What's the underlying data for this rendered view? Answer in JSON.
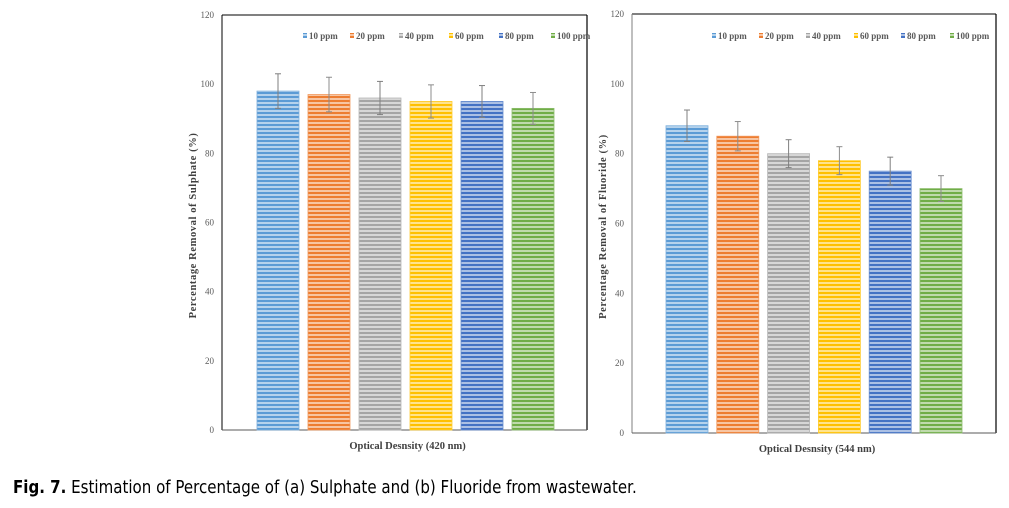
{
  "chart_data": [
    {
      "type": "bar",
      "title": "",
      "panel": "a",
      "xlabel": "Optical Desnsity (420 nm)",
      "ylabel": "Percentage Removal of Sulphate (%)",
      "ylim": [
        0,
        120
      ],
      "yticks": [
        0,
        20,
        40,
        60,
        80,
        100,
        120
      ],
      "grid": false,
      "legend_position": "top",
      "categories": [
        "Optical Desnsity (420 nm)"
      ],
      "series": [
        {
          "name": "10 ppm",
          "values": [
            98
          ],
          "error": [
            5
          ],
          "color": "#5B9BD5"
        },
        {
          "name": "20 ppm",
          "values": [
            97
          ],
          "error": [
            5
          ],
          "color": "#ED7D31"
        },
        {
          "name": "40 ppm",
          "values": [
            96
          ],
          "error": [
            4.8
          ],
          "color": "#A5A5A5"
        },
        {
          "name": "60 ppm",
          "values": [
            95
          ],
          "error": [
            4.8
          ],
          "color": "#FFC000"
        },
        {
          "name": "80 ppm",
          "values": [
            95
          ],
          "error": [
            4.6
          ],
          "color": "#4472C4"
        },
        {
          "name": "100 ppm",
          "values": [
            93
          ],
          "error": [
            4.6
          ],
          "color": "#70AD47"
        }
      ]
    },
    {
      "type": "bar",
      "title": "",
      "panel": "b",
      "xlabel": "Optical Desnsity (544 nm)",
      "ylabel": "Percentage Removal of Fluoride (%)",
      "ylim": [
        0,
        120
      ],
      "yticks": [
        0,
        20,
        40,
        60,
        80,
        100,
        120
      ],
      "grid": false,
      "legend_position": "top",
      "categories": [
        "Optical Desnsity (544 nm)"
      ],
      "series": [
        {
          "name": "10 ppm",
          "values": [
            88
          ],
          "error": [
            4.5
          ],
          "color": "#5B9BD5"
        },
        {
          "name": "20 ppm",
          "values": [
            85
          ],
          "error": [
            4.2
          ],
          "color": "#ED7D31"
        },
        {
          "name": "40 ppm",
          "values": [
            80
          ],
          "error": [
            4
          ],
          "color": "#A5A5A5"
        },
        {
          "name": "60 ppm",
          "values": [
            78
          ],
          "error": [
            4
          ],
          "color": "#FFC000"
        },
        {
          "name": "80 ppm",
          "values": [
            75
          ],
          "error": [
            4
          ],
          "color": "#4472C4"
        },
        {
          "name": "100 ppm",
          "values": [
            70
          ],
          "error": [
            3.7
          ],
          "color": "#70AD47"
        }
      ]
    }
  ],
  "caption": {
    "label": "Fig. 7.",
    "text": " Estimation of Percentage of (a) Sulphate and (b) Fluoride from wastewater."
  }
}
